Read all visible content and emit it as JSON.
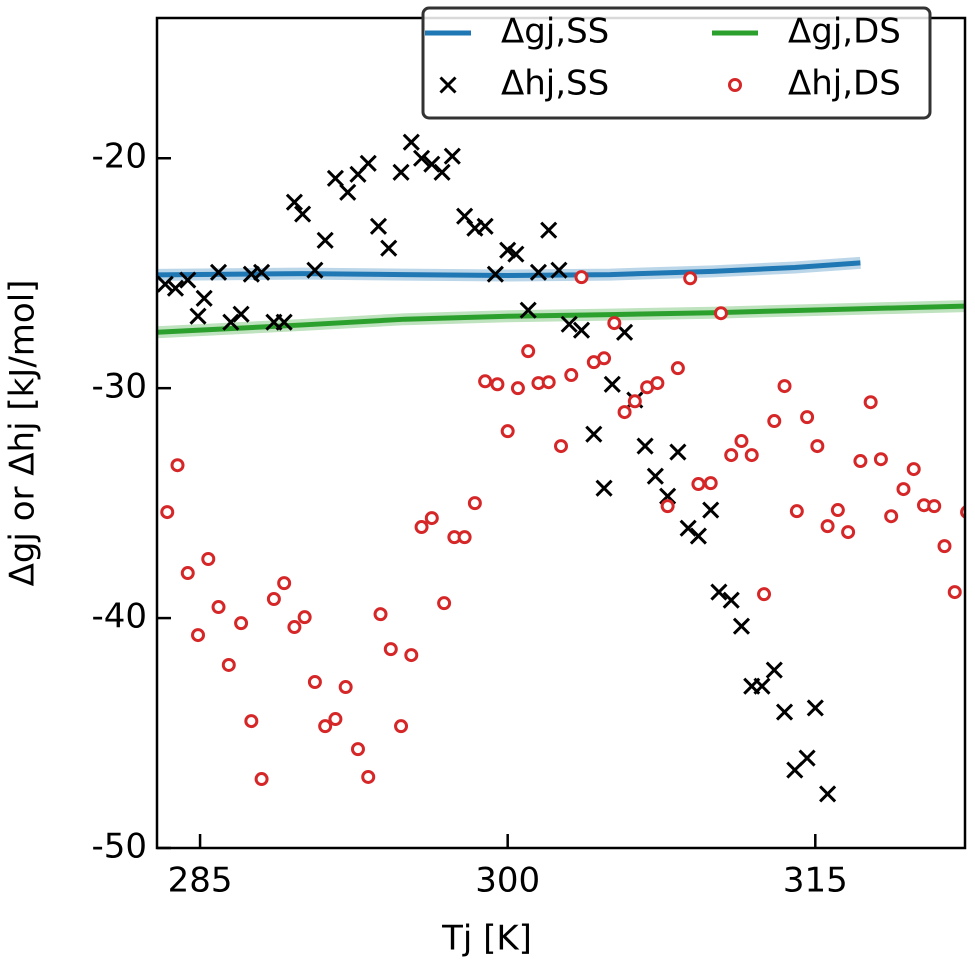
{
  "chart_data": {
    "type": "line",
    "xlabel": "Tj [K]",
    "ylabel": "Δgj or Δhj [kJ/mol]",
    "xlim": [
      282.9,
      322.3
    ],
    "ylim": [
      -50,
      -13.9
    ],
    "xticks": [
      285,
      300,
      315
    ],
    "yticks": [
      -50,
      -40,
      -30,
      -20
    ],
    "legend": "upper right",
    "series": [
      {
        "name": "Δgj,SS",
        "type": "line",
        "color": "#1f77b4",
        "x": [
          282.9,
          290,
          295,
          300,
          305,
          310,
          314,
          317.2
        ],
        "values": [
          -25.07,
          -25.02,
          -25.06,
          -25.1,
          -25.06,
          -24.92,
          -24.75,
          -24.55
        ]
      },
      {
        "name": "Δgj,DS",
        "type": "line",
        "color": "#2ca02c",
        "x": [
          282.9,
          290,
          295,
          300,
          305,
          310,
          315,
          322.3
        ],
        "values": [
          -27.57,
          -27.25,
          -27.0,
          -26.87,
          -26.8,
          -26.72,
          -26.6,
          -26.43
        ]
      },
      {
        "name": "Δhj,SS",
        "type": "scatter",
        "marker": "x",
        "color": "#000000",
        "x": [
          283.3,
          283.8,
          284.4,
          284.9,
          285.2,
          285.9,
          286.5,
          287.0,
          287.5,
          288.0,
          288.6,
          289.1,
          289.6,
          290.0,
          290.6,
          291.1,
          291.6,
          292.2,
          292.7,
          293.2,
          293.7,
          294.2,
          294.8,
          295.3,
          295.8,
          296.3,
          296.8,
          297.3,
          297.9,
          298.4,
          298.9,
          299.4,
          300.0,
          300.4,
          301.0,
          301.5,
          302.0,
          302.5,
          303.0,
          303.6,
          304.2,
          304.7,
          305.1,
          305.7,
          306.2,
          306.7,
          307.2,
          307.8,
          308.3,
          308.8,
          309.3,
          309.9,
          310.3,
          310.9,
          311.4,
          311.9,
          312.4,
          313.0,
          313.5,
          314.0,
          314.6,
          315.0,
          315.6
        ],
        "values": [
          -25.48,
          -25.65,
          -25.3,
          -26.87,
          -26.09,
          -24.96,
          -27.13,
          -26.78,
          -25.04,
          -24.96,
          -27.13,
          -27.13,
          -21.91,
          -22.43,
          -24.87,
          -23.57,
          -20.87,
          -21.48,
          -20.7,
          -20.22,
          -22.96,
          -23.91,
          -20.61,
          -19.3,
          -20.0,
          -20.26,
          -20.61,
          -19.91,
          -22.52,
          -23.04,
          -22.96,
          -25.04,
          -24.0,
          -24.17,
          -26.61,
          -24.96,
          -23.13,
          -24.87,
          -27.22,
          -27.48,
          -32.0,
          -34.35,
          -29.83,
          -27.57,
          -30.52,
          -32.52,
          -33.83,
          -34.7,
          -32.78,
          -36.09,
          -36.43,
          -35.3,
          -38.87,
          -39.22,
          -40.35,
          -42.96,
          -42.96,
          -42.26,
          -44.09,
          -46.61,
          -46.09,
          -43.91,
          -47.65
        ]
      },
      {
        "name": "Δhj,DS",
        "type": "scatter",
        "marker": "o",
        "color": "#d62728",
        "x": [
          283.4,
          283.9,
          284.4,
          284.9,
          285.4,
          285.9,
          286.4,
          287.0,
          287.5,
          288.0,
          288.6,
          289.1,
          289.6,
          290.1,
          290.6,
          291.1,
          291.6,
          292.1,
          292.7,
          293.2,
          293.8,
          294.3,
          294.8,
          295.3,
          295.8,
          296.3,
          296.9,
          297.4,
          297.9,
          298.4,
          298.9,
          299.5,
          300.0,
          300.5,
          301.0,
          301.5,
          302.0,
          302.6,
          303.1,
          303.6,
          304.2,
          304.7,
          305.2,
          305.7,
          306.2,
          306.8,
          307.3,
          307.8,
          308.3,
          308.9,
          309.3,
          309.9,
          310.4,
          310.9,
          311.4,
          311.9,
          312.5,
          313.0,
          313.5,
          314.1,
          314.6,
          315.1,
          315.6,
          316.1,
          316.6,
          317.2,
          317.7,
          318.2,
          318.7,
          319.3,
          319.8,
          320.3,
          320.8,
          321.3,
          321.8,
          322.4
        ],
        "values": [
          -35.39,
          -33.35,
          -38.04,
          -40.74,
          -37.43,
          -39.52,
          -42.04,
          -40.22,
          -44.48,
          -47.0,
          -39.17,
          -38.48,
          -40.39,
          -39.96,
          -42.78,
          -44.7,
          -44.39,
          -43.0,
          -45.7,
          -46.91,
          -39.83,
          -41.35,
          -44.7,
          -41.61,
          -36.04,
          -35.65,
          -39.35,
          -36.48,
          -36.48,
          -35.0,
          -29.7,
          -29.83,
          -31.87,
          -30.0,
          -28.39,
          -29.78,
          -29.74,
          -32.52,
          -29.43,
          -25.17,
          -28.87,
          -28.7,
          -27.17,
          -31.04,
          -30.57,
          -29.96,
          -29.78,
          -35.13,
          -29.13,
          -25.22,
          -34.17,
          -34.13,
          -26.74,
          -32.91,
          -32.3,
          -32.91,
          -38.96,
          -31.43,
          -29.91,
          -35.35,
          -31.26,
          -32.52,
          -36.0,
          -35.3,
          -36.26,
          -33.17,
          -30.61,
          -33.09,
          -35.57,
          -34.39,
          -33.52,
          -35.09,
          -35.13,
          -36.87,
          -38.87,
          -35.39
        ]
      }
    ]
  }
}
